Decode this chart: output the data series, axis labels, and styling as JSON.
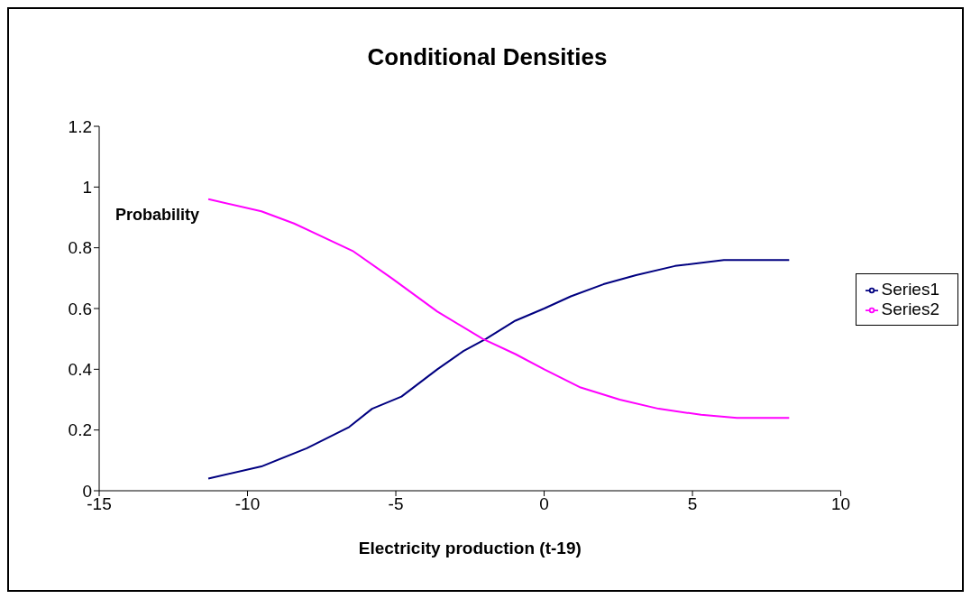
{
  "chart_data": {
    "type": "line",
    "title": "Conditional Densities",
    "xlabel": "Electricity production (t-19)",
    "ylabel": "Probability",
    "series": [
      {
        "name": "Series1",
        "color": "#000080",
        "x": [
          -11.32,
          -9.53,
          -8.0,
          -6.57,
          -5.8,
          -4.81,
          -3.6,
          -2.72,
          -1.96,
          -0.97,
          0,
          0.9,
          2.0,
          3.1,
          4.41,
          6.06,
          6.83,
          8.26
        ],
        "values": [
          0.04,
          0.08,
          0.14,
          0.21,
          0.27,
          0.31,
          0.4,
          0.46,
          0.5,
          0.56,
          0.6,
          0.64,
          0.68,
          0.71,
          0.74,
          0.76,
          0.76,
          0.76
        ]
      },
      {
        "name": "Series2",
        "color": "#ff00ff",
        "x": [
          -11.32,
          -9.53,
          -8.43,
          -6.46,
          -5.14,
          -3.6,
          -2.07,
          -0.97,
          0,
          1.23,
          2.55,
          3.86,
          5.29,
          6.5,
          8.26
        ],
        "values": [
          0.96,
          0.92,
          0.88,
          0.79,
          0.7,
          0.59,
          0.5,
          0.45,
          0.4,
          0.34,
          0.3,
          0.27,
          0.25,
          0.24,
          0.24
        ]
      }
    ],
    "xlim": [
      -15,
      10
    ],
    "xticks": [
      -15,
      -10,
      -5,
      0,
      5,
      10
    ],
    "ylim": [
      0,
      1.2
    ],
    "yticks": [
      0,
      0.2,
      0.4,
      0.6,
      0.8,
      1,
      1.2
    ],
    "grid": false,
    "legend": "right",
    "marker": "none",
    "line_style": "solid"
  }
}
